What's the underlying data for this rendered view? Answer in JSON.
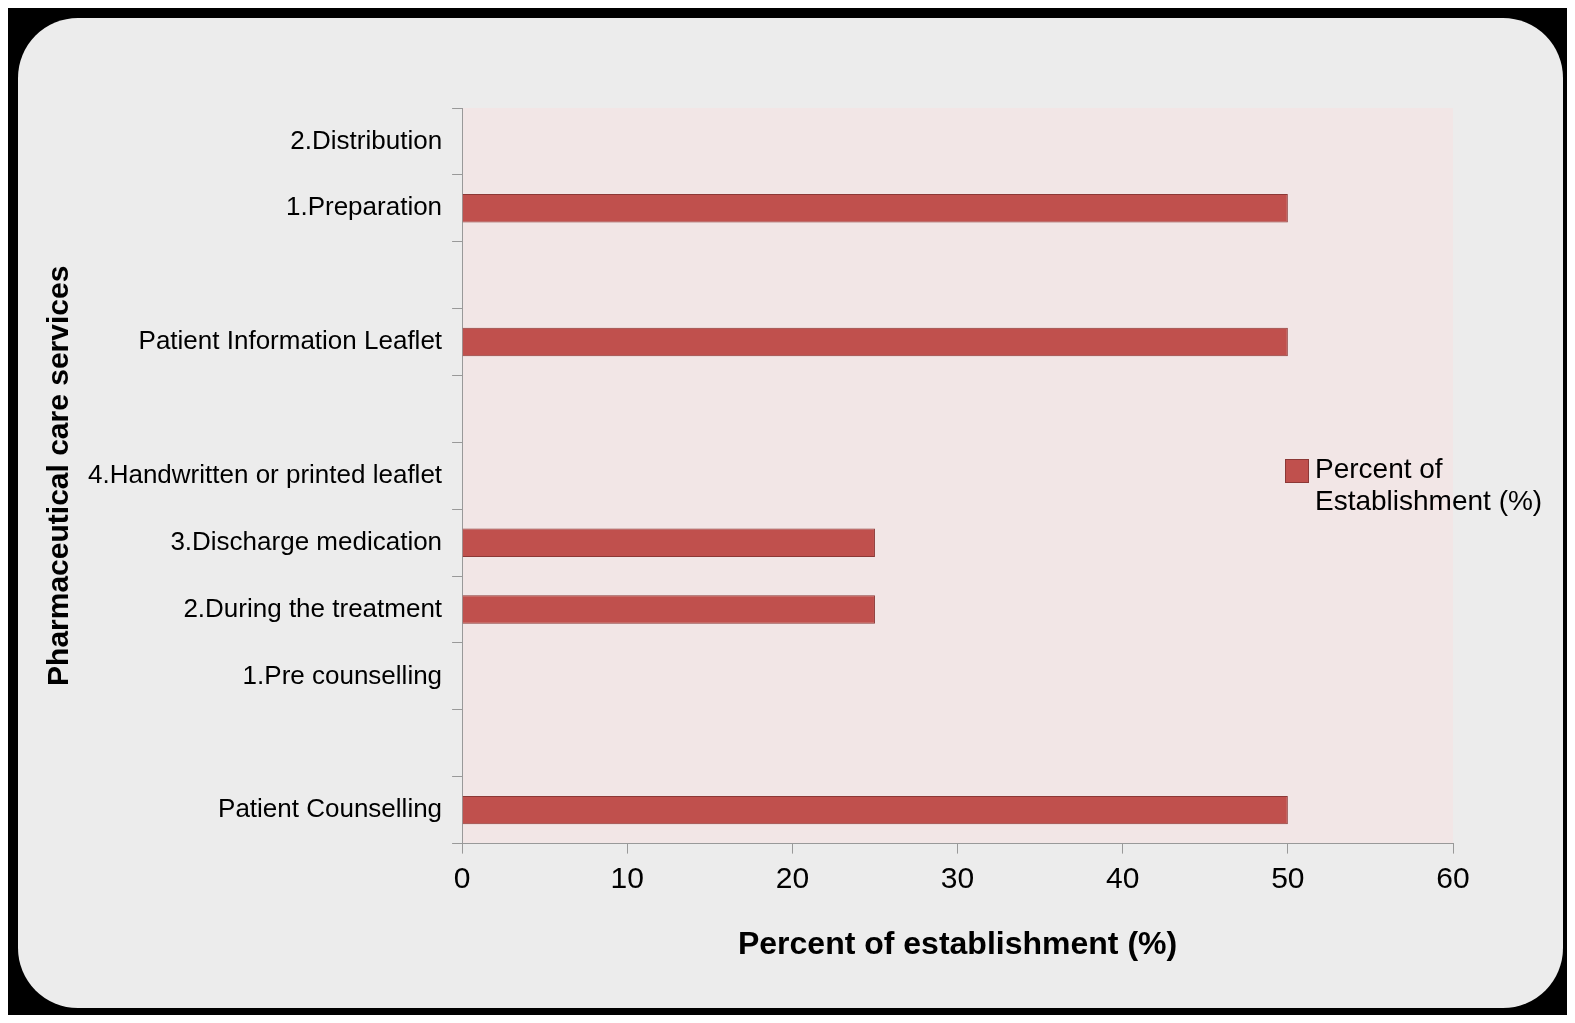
{
  "chart_data": {
    "type": "bar",
    "orientation": "horizontal",
    "xlabel": "Percent of establishment (%)",
    "ylabel": "Pharmaceutical care services",
    "categories": [
      "2.Distribution",
      "1.Preparation",
      null,
      "Patient Information Leaflet",
      null,
      "4.Handwritten or printed leaflet",
      "3.Discharge medication",
      "2.During the treatment",
      "1.Pre counselling",
      null,
      "Patient Counselling"
    ],
    "series": [
      {
        "name": "Percent of Establishment (%)",
        "color": "#c0504d",
        "values": [
          0,
          50,
          null,
          50,
          null,
          0,
          25,
          25,
          0,
          null,
          50
        ]
      }
    ],
    "xlim": [
      0,
      60
    ],
    "xticks": [
      0,
      10,
      20,
      30,
      40,
      50,
      60
    ],
    "grid": false,
    "legend": "right"
  }
}
